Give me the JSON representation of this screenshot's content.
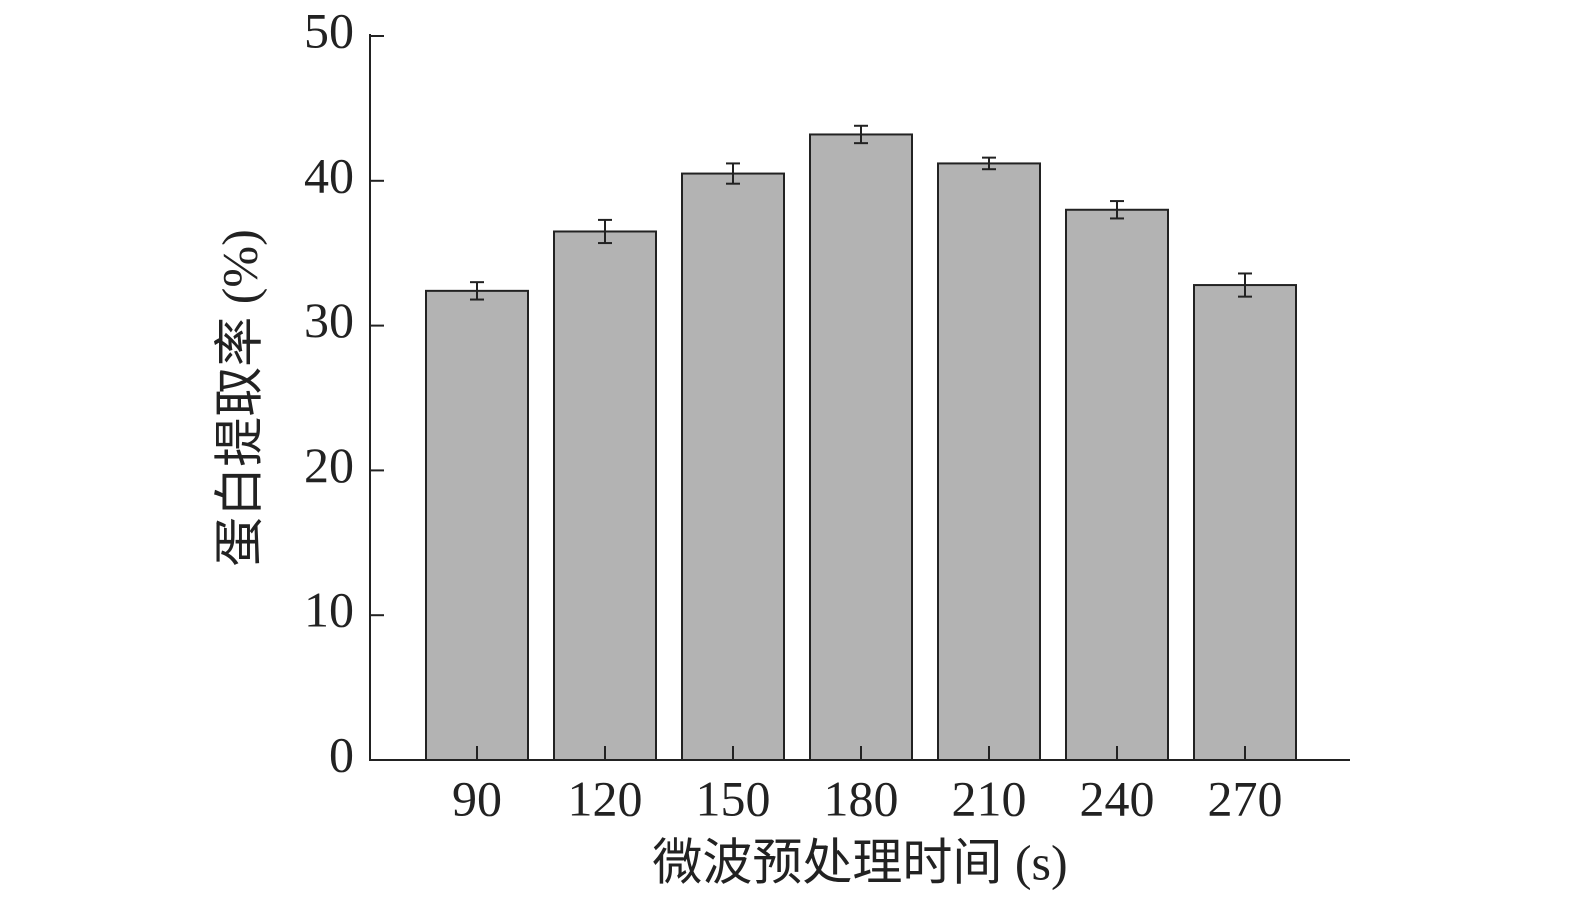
{
  "chart_data": {
    "type": "bar",
    "x_label": "微波预处理时间 (s)",
    "y_label": "蛋白提取率 (%)",
    "categories": [
      "90",
      "120",
      "150",
      "180",
      "210",
      "240",
      "270"
    ],
    "values": [
      32.4,
      36.5,
      40.5,
      43.2,
      41.2,
      38.0,
      32.8
    ],
    "errors": [
      0.6,
      0.8,
      0.7,
      0.6,
      0.4,
      0.6,
      0.8
    ],
    "color": "#b3b3b3",
    "ylim": [
      0,
      50
    ],
    "yticks": [
      0,
      10,
      20,
      30,
      40,
      50
    ]
  }
}
